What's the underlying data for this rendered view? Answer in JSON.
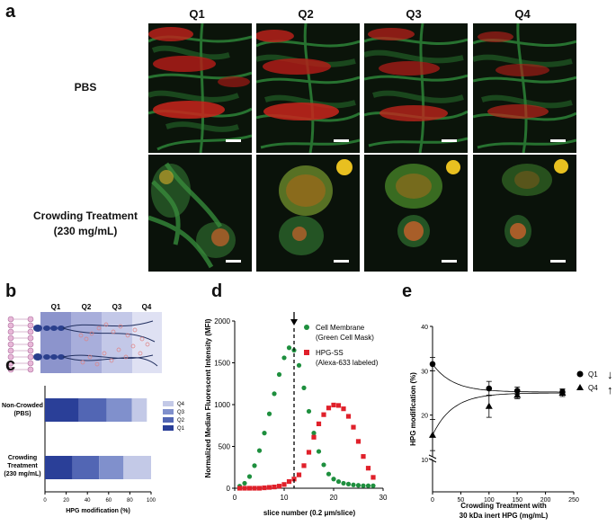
{
  "panel_a": {
    "letter": "a",
    "quarters": [
      "Q1",
      "Q2",
      "Q3",
      "Q4"
    ],
    "rows": [
      {
        "label": "PBS",
        "label2": ""
      },
      {
        "label": "Crowding Treatment",
        "label2": "(230 mg/mL)"
      }
    ]
  },
  "panel_b": {
    "letter": "b",
    "quarters": [
      "Q1",
      "Q2",
      "Q3",
      "Q4"
    ]
  },
  "panel_c": {
    "letter": "c",
    "xlabel": "HPG modification (%)",
    "row_labels": [
      {
        "l1": "Non-Crowded",
        "l2": "(PBS)"
      },
      {
        "l1": "Crowding",
        "l2": "Treatment",
        "l3": "(230 mg/mL)"
      }
    ],
    "legend": [
      "Q4",
      "Q3",
      "Q2",
      "Q1"
    ],
    "ticks": [
      "0",
      "20",
      "40",
      "60",
      "80",
      "100"
    ],
    "colors": {
      "Q1": "#2a3f98",
      "Q2": "#5266b4",
      "Q3": "#8090cc",
      "Q4": "#c3c9e7"
    }
  },
  "panel_d": {
    "letter": "d",
    "xlabel": "slice number (0.2 μm/slice)",
    "ylabel": "Normalized Median Fluorescent Intensity (MFI)",
    "xticks": [
      "0",
      "10",
      "20",
      "30"
    ],
    "yticks": [
      "0",
      "500",
      "1000",
      "1500",
      "2000"
    ],
    "legend": [
      {
        "l1": "Cell Membrane",
        "l2": "(Green Cell Mask)",
        "color": "#1e8f3e"
      },
      {
        "l1": "HPG-SS",
        "l2": "(Alexa-633 labeled)",
        "color": "#e0202a"
      }
    ]
  },
  "panel_e": {
    "letter": "e",
    "ylabel": "HPG modification (%)",
    "xlabel1": "Crowding Treatment with",
    "xlabel2": "30 kDa inert HPG (mg/mL)",
    "xticks": [
      "0",
      "50",
      "100",
      "150",
      "200",
      "250"
    ],
    "yticks": [
      "10",
      "20",
      "30",
      "40"
    ],
    "legend": [
      "Q1",
      "Q4"
    ],
    "arrows": [
      "↓",
      "↑"
    ]
  },
  "chart_data": [
    {
      "type": "bar",
      "id": "c",
      "categories": [
        "Non-Crowded (PBS)",
        "Crowding Treatment (230 mg/mL)"
      ],
      "stacked": true,
      "series": [
        {
          "name": "Q1",
          "values": [
            32,
            26
          ]
        },
        {
          "name": "Q2",
          "values": [
            26,
            25
          ]
        },
        {
          "name": "Q3",
          "values": [
            24,
            23
          ]
        },
        {
          "name": "Q4",
          "values": [
            14,
            26
          ]
        }
      ],
      "xlabel": "HPG modification (%)",
      "xlim": [
        0,
        100
      ]
    },
    {
      "type": "scatter",
      "id": "d",
      "xlabel": "slice number (0.2 μm/slice)",
      "ylabel": "Normalized Median Fluorescent Intensity (MFI)",
      "xlim": [
        0,
        30
      ],
      "ylim": [
        0,
        2000
      ],
      "marker_x": 12,
      "series": [
        {
          "name": "Cell Membrane (Green Cell Mask)",
          "x": [
            1,
            2,
            3,
            4,
            5,
            6,
            7,
            8,
            9,
            10,
            11,
            12,
            13,
            14,
            15,
            16,
            17,
            18,
            19,
            20,
            21,
            22,
            23,
            24,
            25,
            26,
            27,
            28
          ],
          "y": [
            25,
            60,
            140,
            270,
            450,
            660,
            890,
            1130,
            1360,
            1560,
            1680,
            1650,
            1470,
            1200,
            920,
            660,
            440,
            280,
            170,
            110,
            80,
            60,
            50,
            40,
            35,
            30,
            30,
            30
          ]
        },
        {
          "name": "HPG-SS (Alexa-633 labeled)",
          "x": [
            1,
            2,
            3,
            4,
            5,
            6,
            7,
            8,
            9,
            10,
            11,
            12,
            13,
            14,
            15,
            16,
            17,
            18,
            19,
            20,
            21,
            22,
            23,
            24,
            25,
            26,
            27,
            28
          ],
          "y": [
            0,
            0,
            0,
            0,
            0,
            5,
            10,
            15,
            25,
            45,
            80,
            110,
            160,
            270,
            430,
            610,
            770,
            880,
            960,
            995,
            990,
            950,
            860,
            730,
            560,
            380,
            240,
            130
          ]
        }
      ]
    },
    {
      "type": "scatter",
      "id": "e",
      "xlabel": "Crowding Treatment with 30 kDa inert HPG (mg/mL)",
      "ylabel": "HPG modification (%)",
      "xlim": [
        0,
        250
      ],
      "ylim": [
        10,
        40
      ],
      "series": [
        {
          "name": "Q1",
          "x": [
            0,
            100,
            150,
            230
          ],
          "y": [
            31.5,
            26,
            25.5,
            25.2
          ],
          "err": [
            1.5,
            1.6,
            0.8,
            0.7
          ]
        },
        {
          "name": "Q4",
          "x": [
            0,
            100,
            150,
            230
          ],
          "y": [
            15.5,
            22,
            24.5,
            25
          ],
          "err": [
            3.5,
            2.5,
            0.8,
            0.8
          ]
        }
      ]
    }
  ]
}
